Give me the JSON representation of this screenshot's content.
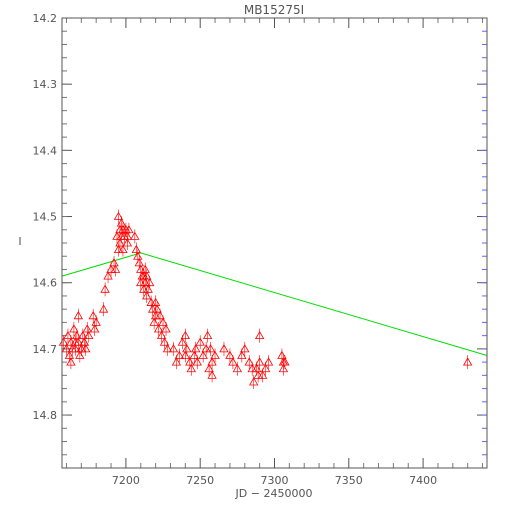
{
  "chart_data": {
    "type": "scatter",
    "title": "MB15275I",
    "xlabel": "JD − 2450000",
    "ylabel": "I",
    "xlim": [
      7157,
      7443
    ],
    "ylim": [
      14.88,
      14.2
    ],
    "y_inverted": true,
    "grid": false,
    "x_ticks": [
      7200,
      7250,
      7300,
      7350,
      7400
    ],
    "x_tick_labels": [
      "7200",
      "7250",
      "7300",
      "7350",
      "7400"
    ],
    "y_ticks": [
      14.2,
      14.3,
      14.4,
      14.5,
      14.6,
      14.7,
      14.8
    ],
    "y_tick_labels": [
      "14.2",
      "14.3",
      "14.4",
      "14.5",
      "14.6",
      "14.7",
      "14.8"
    ],
    "series": [
      {
        "kind": "points",
        "marker": "triangle",
        "color": "#ff0000",
        "points": [
          [
            7158,
            14.69
          ],
          [
            7160,
            14.7
          ],
          [
            7161,
            14.68
          ],
          [
            7162,
            14.71
          ],
          [
            7163,
            14.69
          ],
          [
            7164,
            14.7
          ],
          [
            7165,
            14.67
          ],
          [
            7166,
            14.7
          ],
          [
            7167,
            14.68
          ],
          [
            7168,
            14.69
          ],
          [
            7169,
            14.71
          ],
          [
            7170,
            14.7
          ],
          [
            7171,
            14.68
          ],
          [
            7172,
            14.69
          ],
          [
            7173,
            14.7
          ],
          [
            7174,
            14.67
          ],
          [
            7168,
            14.65
          ],
          [
            7170,
            14.7
          ],
          [
            7172,
            14.69
          ],
          [
            7175,
            14.68
          ],
          [
            7163,
            14.72
          ],
          [
            7166,
            14.69
          ],
          [
            7178,
            14.65
          ],
          [
            7179,
            14.67
          ],
          [
            7180,
            14.66
          ],
          [
            7185,
            14.64
          ],
          [
            7186,
            14.61
          ],
          [
            7188,
            14.59
          ],
          [
            7190,
            14.58
          ],
          [
            7192,
            14.57
          ],
          [
            7193,
            14.58
          ],
          [
            7194,
            14.53
          ],
          [
            7195,
            14.55
          ],
          [
            7195,
            14.5
          ],
          [
            7196,
            14.52
          ],
          [
            7196,
            14.54
          ],
          [
            7197,
            14.53
          ],
          [
            7197,
            14.51
          ],
          [
            7198,
            14.52
          ],
          [
            7198,
            14.55
          ],
          [
            7199,
            14.53
          ],
          [
            7200,
            14.52
          ],
          [
            7201,
            14.54
          ],
          [
            7201,
            14.53
          ],
          [
            7202,
            14.52
          ],
          [
            7206,
            14.53
          ],
          [
            7207,
            14.55
          ],
          [
            7208,
            14.56
          ],
          [
            7209,
            14.57
          ],
          [
            7210,
            14.58
          ],
          [
            7210,
            14.6
          ],
          [
            7211,
            14.59
          ],
          [
            7212,
            14.61
          ],
          [
            7212,
            14.59
          ],
          [
            7213,
            14.6
          ],
          [
            7213,
            14.58
          ],
          [
            7214,
            14.62
          ],
          [
            7214,
            14.59
          ],
          [
            7215,
            14.61
          ],
          [
            7216,
            14.6
          ],
          [
            7217,
            14.63
          ],
          [
            7218,
            14.64
          ],
          [
            7219,
            14.66
          ],
          [
            7220,
            14.63
          ],
          [
            7220,
            14.65
          ],
          [
            7221,
            14.64
          ],
          [
            7222,
            14.67
          ],
          [
            7223,
            14.65
          ],
          [
            7224,
            14.68
          ],
          [
            7225,
            14.66
          ],
          [
            7226,
            14.69
          ],
          [
            7227,
            14.67
          ],
          [
            7228,
            14.7
          ],
          [
            7232,
            14.7
          ],
          [
            7234,
            14.72
          ],
          [
            7236,
            14.71
          ],
          [
            7238,
            14.69
          ],
          [
            7240,
            14.71
          ],
          [
            7240,
            14.68
          ],
          [
            7241,
            14.7
          ],
          [
            7243,
            14.72
          ],
          [
            7244,
            14.73
          ],
          [
            7246,
            14.71
          ],
          [
            7247,
            14.7
          ],
          [
            7248,
            14.72
          ],
          [
            7250,
            14.69
          ],
          [
            7252,
            14.71
          ],
          [
            7254,
            14.7
          ],
          [
            7255,
            14.68
          ],
          [
            7256,
            14.73
          ],
          [
            7257,
            14.7
          ],
          [
            7258,
            14.72
          ],
          [
            7258,
            14.74
          ],
          [
            7260,
            14.71
          ],
          [
            7266,
            14.7
          ],
          [
            7270,
            14.71
          ],
          [
            7272,
            14.72
          ],
          [
            7275,
            14.73
          ],
          [
            7278,
            14.71
          ],
          [
            7280,
            14.7
          ],
          [
            7283,
            14.72
          ],
          [
            7285,
            14.73
          ],
          [
            7286,
            14.75
          ],
          [
            7288,
            14.73
          ],
          [
            7289,
            14.74
          ],
          [
            7290,
            14.72
          ],
          [
            7290,
            14.68
          ],
          [
            7292,
            14.74
          ],
          [
            7294,
            14.73
          ],
          [
            7296,
            14.72
          ],
          [
            7305,
            14.71
          ],
          [
            7306,
            14.72
          ],
          [
            7306,
            14.73
          ],
          [
            7307,
            14.72
          ],
          [
            7430,
            14.72
          ]
        ]
      },
      {
        "kind": "line",
        "color": "#00dd00",
        "points": [
          [
            7157,
            14.59
          ],
          [
            7210,
            14.555
          ],
          [
            7443,
            14.71
          ]
        ]
      }
    ]
  }
}
